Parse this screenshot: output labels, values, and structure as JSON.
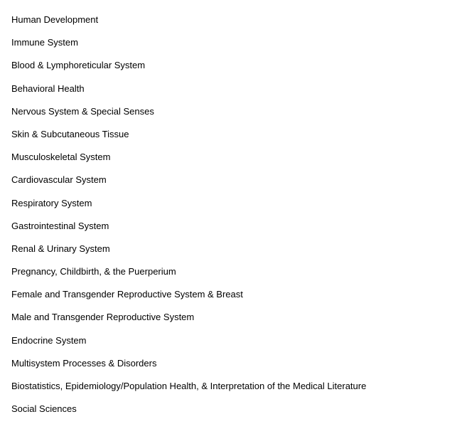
{
  "topics": [
    "Human Development",
    "Immune System",
    "Blood & Lymphoreticular System",
    "Behavioral Health",
    "Nervous System & Special Senses",
    "Skin & Subcutaneous Tissue",
    "Musculoskeletal System",
    "Cardiovascular System",
    "Respiratory System",
    "Gastrointestinal System",
    "Renal & Urinary System",
    "Pregnancy, Childbirth, & the Puerperium",
    "Female and Transgender Reproductive System & Breast",
    "Male and Transgender Reproductive System",
    "Endocrine System",
    "Multisystem Processes & Disorders",
    "Biostatistics, Epidemiology/Population Health, & Interpretation of the Medical Literature",
    "Social Sciences"
  ]
}
